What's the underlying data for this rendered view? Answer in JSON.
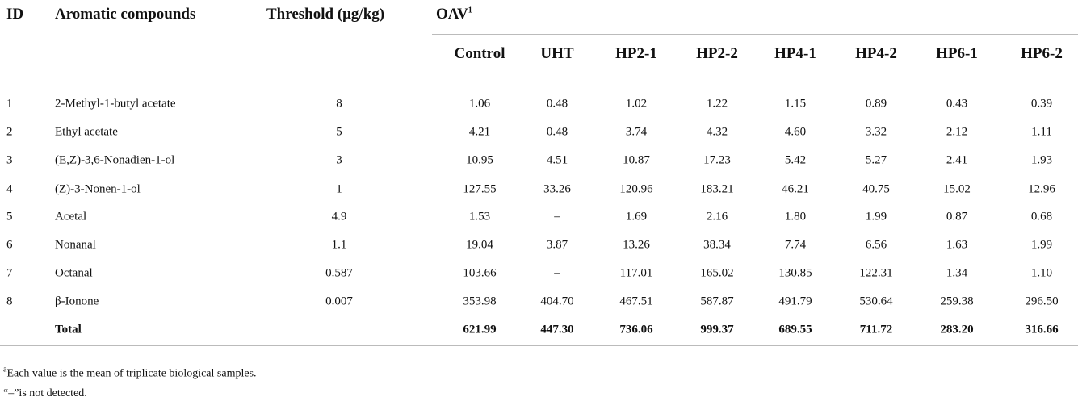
{
  "table": {
    "header": {
      "id": "ID",
      "compound": "Aromatic compounds",
      "threshold": "Threshold (μg/kg)",
      "oav": "OAV",
      "oav_sup": "1",
      "samples": [
        "Control",
        "UHT",
        "HP2-1",
        "HP2-2",
        "HP4-1",
        "HP4-2",
        "HP6-1",
        "HP6-2"
      ]
    },
    "rows": [
      [
        "1",
        "2-Methyl-1-butyl acetate",
        "8",
        "1.06",
        "0.48",
        "1.02",
        "1.22",
        "1.15",
        "0.89",
        "0.43",
        "0.39"
      ],
      [
        "2",
        "Ethyl acetate",
        "5",
        "4.21",
        "0.48",
        "3.74",
        "4.32",
        "4.60",
        "3.32",
        "2.12",
        "1.11"
      ],
      [
        "3",
        "(E,Z)-3,6-Nonadien-1-ol",
        "3",
        "10.95",
        "4.51",
        "10.87",
        "17.23",
        "5.42",
        "5.27",
        "2.41",
        "1.93"
      ],
      [
        "4",
        "(Z)-3-Nonen-1-ol",
        "1",
        "127.55",
        "33.26",
        "120.96",
        "183.21",
        "46.21",
        "40.75",
        "15.02",
        "12.96"
      ],
      [
        "5",
        "Acetal",
        "4.9",
        "1.53",
        "–",
        "1.69",
        "2.16",
        "1.80",
        "1.99",
        "0.87",
        "0.68"
      ],
      [
        "6",
        "Nonanal",
        "1.1",
        "19.04",
        "3.87",
        "13.26",
        "38.34",
        "7.74",
        "6.56",
        "1.63",
        "1.99"
      ],
      [
        "7",
        "Octanal",
        "0.587",
        "103.66",
        "–",
        "117.01",
        "165.02",
        "130.85",
        "122.31",
        "1.34",
        "1.10"
      ],
      [
        "8",
        "β-Ionone",
        "0.007",
        "353.98",
        "404.70",
        "467.51",
        "587.87",
        "491.79",
        "530.64",
        "259.38",
        "296.50"
      ]
    ],
    "total": {
      "label": "Total",
      "values": [
        "621.99",
        "447.30",
        "736.06",
        "999.37",
        "689.55",
        "711.72",
        "283.20",
        "316.66"
      ]
    }
  },
  "footnotes": [
    {
      "sup": "a",
      "text": "Each value is the mean of triplicate biological samples."
    },
    {
      "text": "“–”is not detected."
    }
  ]
}
